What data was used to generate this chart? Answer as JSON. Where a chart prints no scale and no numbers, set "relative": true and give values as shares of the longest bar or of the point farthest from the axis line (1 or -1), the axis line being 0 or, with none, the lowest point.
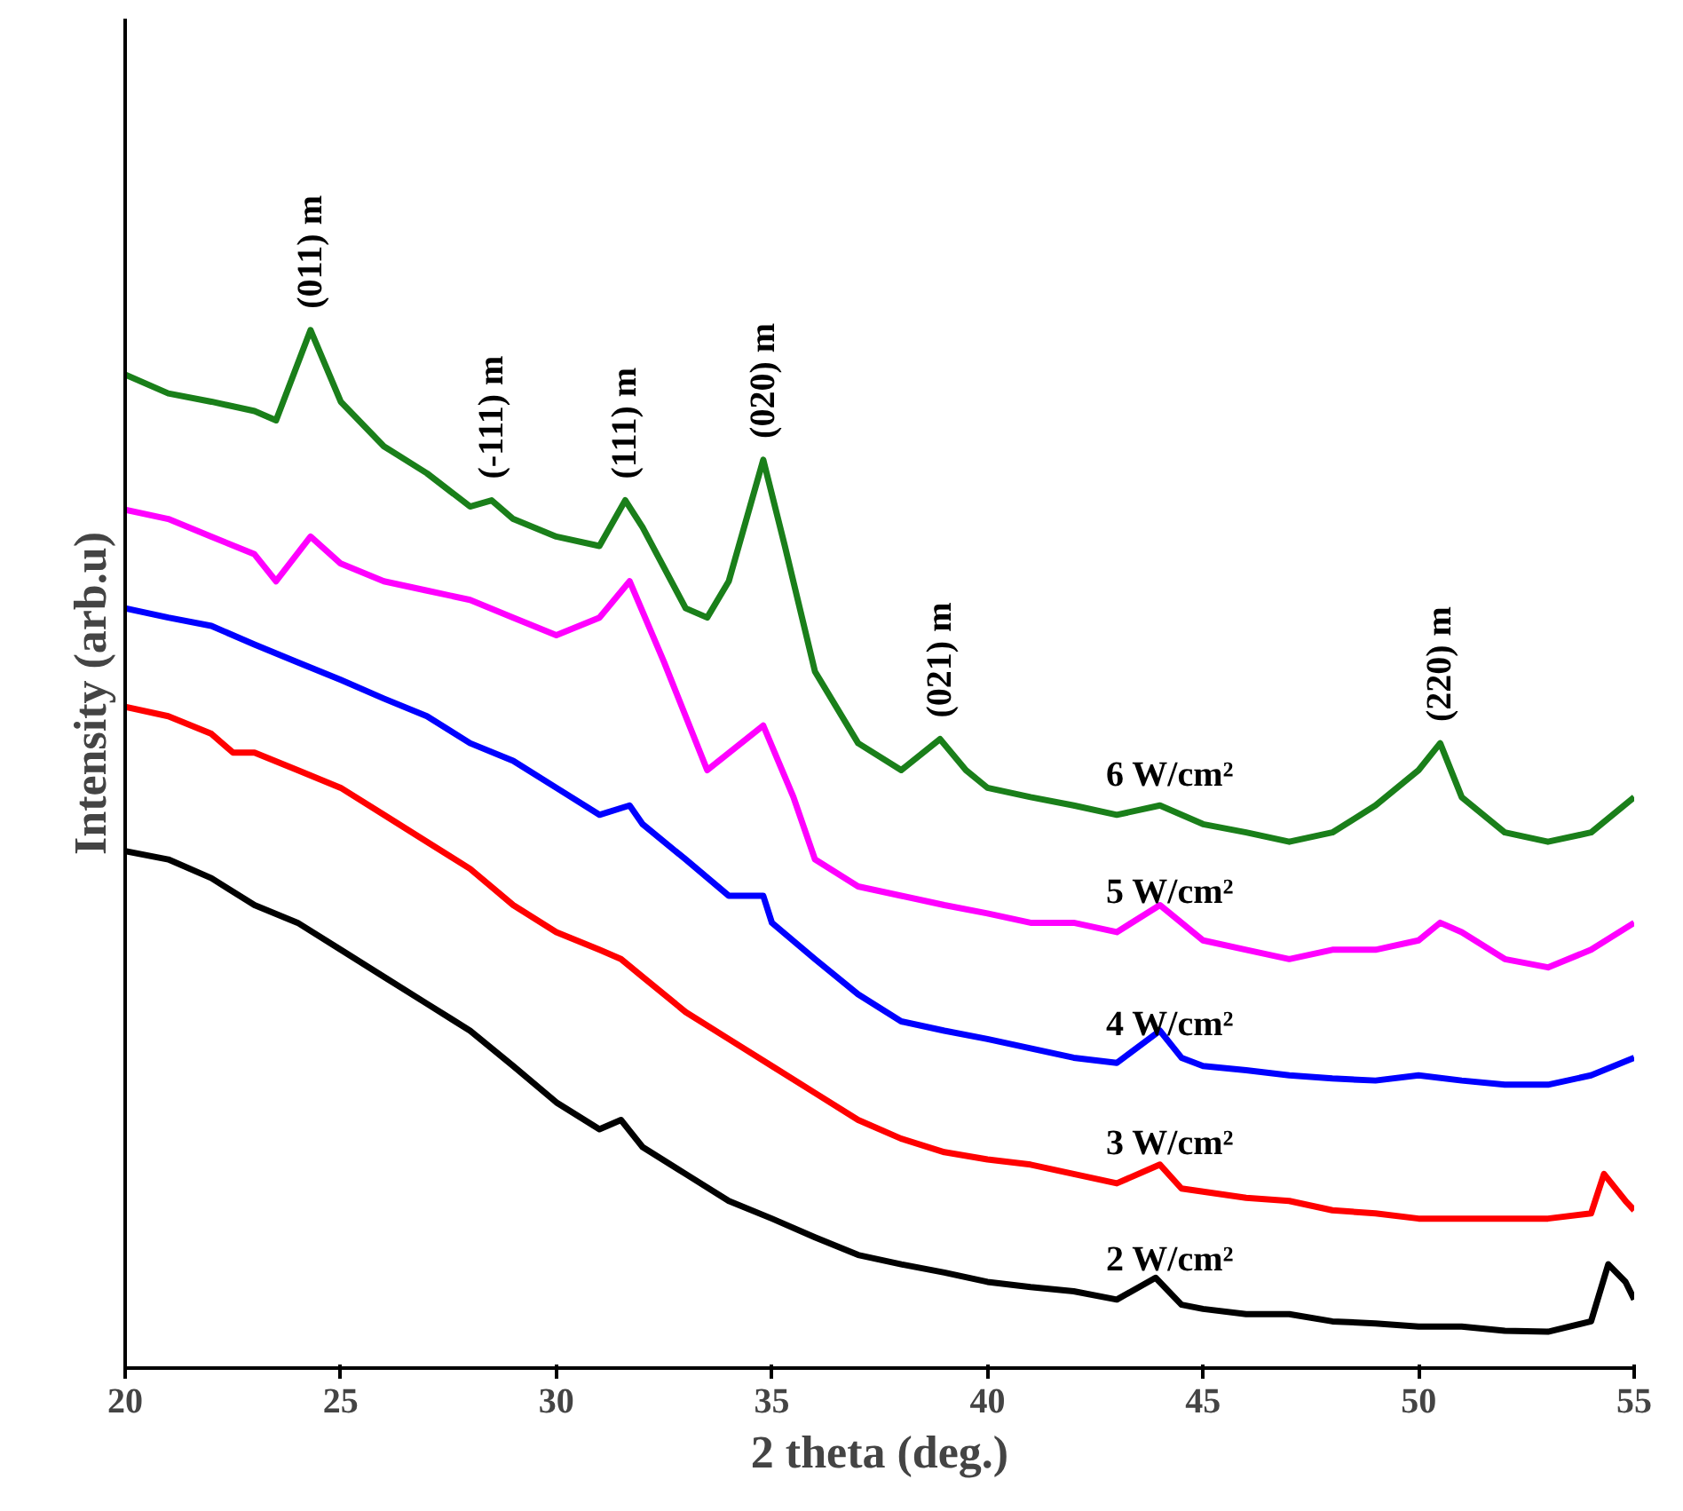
{
  "chart_data": {
    "type": "line",
    "relative": true,
    "xlabel": "2 theta (deg.)",
    "ylabel": "Intensity (arb.u)",
    "xlim": [
      20,
      55
    ],
    "xticks": [
      20,
      25,
      30,
      35,
      40,
      45,
      50,
      55
    ],
    "grid": false,
    "line_style": "solid",
    "marker": "none",
    "series": [
      {
        "name": "2 W/cm²",
        "color": "#000000",
        "x": [
          20,
          21,
          22,
          23,
          24,
          25,
          26,
          27,
          28,
          29,
          30,
          31,
          31.5,
          32,
          33,
          34,
          35,
          36,
          37,
          38,
          39,
          40,
          41,
          42,
          43,
          43.9,
          44.5,
          45,
          46,
          47,
          48,
          49,
          50,
          51,
          52,
          53,
          54,
          54.4,
          54.8,
          55
        ],
        "values": [
          0.498,
          0.49,
          0.472,
          0.446,
          0.429,
          0.403,
          0.377,
          0.351,
          0.325,
          0.291,
          0.256,
          0.23,
          0.239,
          0.213,
          0.187,
          0.161,
          0.144,
          0.126,
          0.109,
          0.1,
          0.092,
          0.083,
          0.078,
          0.074,
          0.066,
          0.087,
          0.061,
          0.057,
          0.052,
          0.052,
          0.045,
          0.043,
          0.04,
          0.04,
          0.036,
          0.035,
          0.045,
          0.1,
          0.083,
          0.066
        ]
      },
      {
        "name": "3 W/cm²",
        "color": "#ff0000",
        "x": [
          20,
          21,
          22,
          22.5,
          23,
          24,
          25,
          26,
          27,
          28,
          29,
          30,
          31,
          31.5,
          32,
          33,
          34,
          35,
          36,
          37,
          38,
          39,
          40,
          41,
          42,
          43,
          44,
          44.5,
          45,
          46,
          47,
          48,
          49,
          50,
          51,
          52,
          53,
          54,
          54.3,
          54.8,
          55
        ],
        "values": [
          0.637,
          0.628,
          0.611,
          0.593,
          0.593,
          0.576,
          0.559,
          0.533,
          0.507,
          0.481,
          0.446,
          0.42,
          0.403,
          0.394,
          0.377,
          0.343,
          0.317,
          0.291,
          0.265,
          0.239,
          0.221,
          0.208,
          0.201,
          0.196,
          0.187,
          0.178,
          0.196,
          0.173,
          0.17,
          0.164,
          0.161,
          0.152,
          0.149,
          0.144,
          0.144,
          0.144,
          0.144,
          0.149,
          0.187,
          0.161,
          0.152
        ]
      },
      {
        "name": "4 W/cm²",
        "color": "#0000ff",
        "x": [
          20,
          21,
          22,
          23,
          24,
          25,
          26,
          27,
          28,
          29,
          30,
          31,
          31.7,
          32,
          33,
          34,
          34.8,
          35,
          36,
          37,
          38,
          39,
          40,
          41,
          42,
          43,
          44,
          44.5,
          45,
          46,
          47,
          48,
          49,
          50,
          51,
          52,
          53,
          54,
          55
        ],
        "values": [
          0.732,
          0.723,
          0.715,
          0.697,
          0.68,
          0.663,
          0.645,
          0.628,
          0.602,
          0.585,
          0.559,
          0.533,
          0.542,
          0.524,
          0.49,
          0.455,
          0.455,
          0.429,
          0.394,
          0.36,
          0.334,
          0.325,
          0.317,
          0.308,
          0.299,
          0.294,
          0.325,
          0.299,
          0.291,
          0.287,
          0.282,
          0.279,
          0.277,
          0.282,
          0.277,
          0.273,
          0.273,
          0.282,
          0.299
        ]
      },
      {
        "name": "5 W/cm²",
        "color": "#ff00ff",
        "x": [
          20,
          21,
          22,
          23,
          23.5,
          24.3,
          25,
          26,
          27,
          28,
          29,
          30,
          31,
          31.7,
          32.5,
          33.5,
          34.8,
          35.5,
          36,
          37,
          38,
          39,
          40,
          41,
          42,
          43,
          44,
          45,
          46,
          47,
          48,
          49,
          50,
          50.5,
          51,
          52,
          53,
          54,
          55
        ],
        "values": [
          0.827,
          0.818,
          0.801,
          0.784,
          0.758,
          0.801,
          0.775,
          0.758,
          0.749,
          0.74,
          0.723,
          0.706,
          0.723,
          0.758,
          0.68,
          0.576,
          0.619,
          0.55,
          0.49,
          0.464,
          0.455,
          0.446,
          0.438,
          0.429,
          0.429,
          0.42,
          0.446,
          0.412,
          0.403,
          0.394,
          0.403,
          0.403,
          0.412,
          0.429,
          0.42,
          0.394,
          0.386,
          0.403,
          0.429
        ]
      },
      {
        "name": "6 W/cm²",
        "color": "#1a7f1a",
        "x": [
          20,
          21,
          22,
          23,
          23.5,
          24.3,
          25,
          26,
          27,
          28,
          28.5,
          29,
          30,
          31,
          31.6,
          32,
          33,
          33.5,
          34,
          34.8,
          35.3,
          36,
          37,
          38,
          38.9,
          39.5,
          40,
          41,
          42,
          43,
          44,
          45,
          46,
          47,
          48,
          49,
          50,
          50.5,
          51,
          52,
          53,
          54,
          55
        ],
        "values": [
          0.957,
          0.939,
          0.931,
          0.922,
          0.913,
          1.0,
          0.931,
          0.888,
          0.862,
          0.83,
          0.836,
          0.818,
          0.801,
          0.792,
          0.836,
          0.81,
          0.732,
          0.723,
          0.758,
          0.875,
          0.792,
          0.671,
          0.602,
          0.576,
          0.606,
          0.576,
          0.559,
          0.55,
          0.542,
          0.533,
          0.542,
          0.524,
          0.516,
          0.507,
          0.516,
          0.542,
          0.576,
          0.602,
          0.55,
          0.516,
          0.507,
          0.516,
          0.55
        ]
      }
    ],
    "annotations": [
      {
        "text": "(011) m",
        "x": 24.3,
        "y": 1.0
      },
      {
        "text": "(-111) m",
        "x": 28.5,
        "y": 0.836
      },
      {
        "text": "(111) m",
        "x": 31.6,
        "y": 0.836
      },
      {
        "text": "(020) m",
        "x": 34.8,
        "y": 0.875
      },
      {
        "text": "(021) m",
        "x": 38.9,
        "y": 0.606
      },
      {
        "text": "(220) m",
        "x": 50.5,
        "y": 0.602
      }
    ]
  }
}
